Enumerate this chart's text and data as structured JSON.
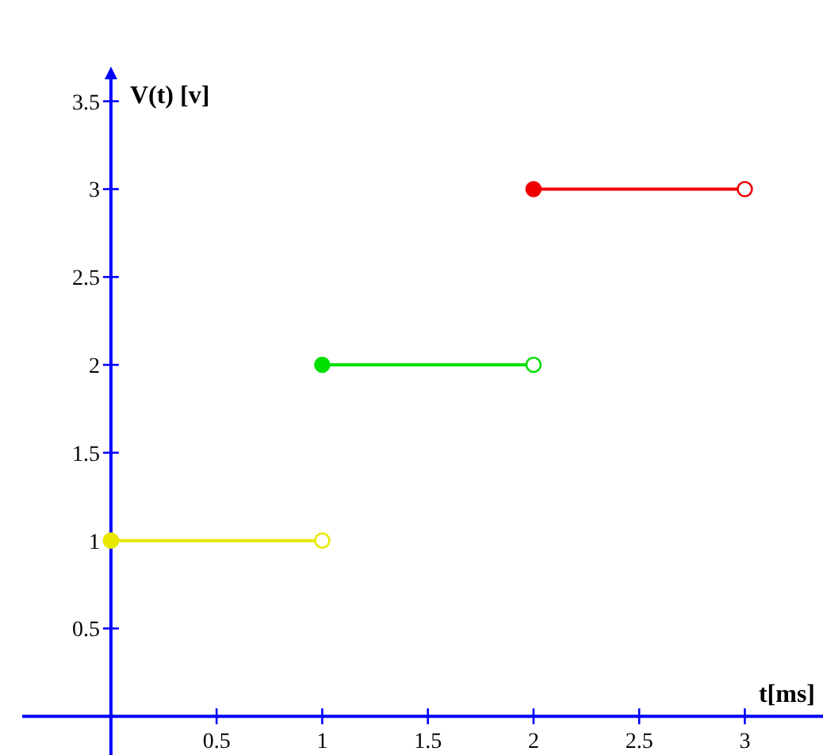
{
  "chart_data": {
    "type": "line",
    "xlabel": "t[ms]",
    "ylabel": "V(t) [v]",
    "xlim": [
      -0.42,
      3.37
    ],
    "ylim": [
      -0.22,
      3.67
    ],
    "xticks": [
      0.5,
      1,
      1.5,
      2,
      2.5,
      3
    ],
    "yticks": [
      0.5,
      1,
      1.5,
      2,
      2.5,
      3,
      3.5
    ],
    "marker": "circle",
    "line_style": "solid",
    "grid": false,
    "series": [
      {
        "color": "#e8e800",
        "x": [
          0,
          1
        ],
        "values": [
          1,
          1
        ]
      },
      {
        "color": "#00e000",
        "x": [
          1,
          2
        ],
        "values": [
          2,
          2
        ]
      },
      {
        "color": "#ee0000",
        "x": [
          2,
          3
        ],
        "values": [
          3,
          3
        ]
      }
    ]
  }
}
